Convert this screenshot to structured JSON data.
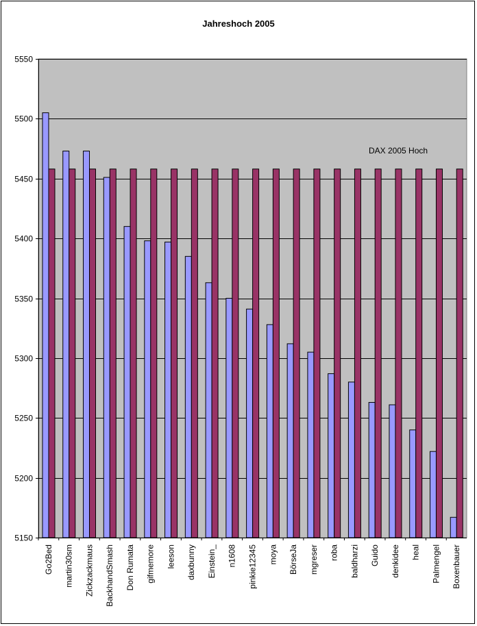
{
  "chart_data": {
    "type": "bar",
    "title": "Jahreshoch 2005",
    "xlabel": "",
    "ylabel": "",
    "ylim": [
      5150,
      5550
    ],
    "yticks": [
      5150,
      5200,
      5250,
      5300,
      5350,
      5400,
      5450,
      5500,
      5550
    ],
    "grid": true,
    "annotation": "DAX 2005 Hoch",
    "categories": [
      "Go2Bed",
      "martin30sm",
      "Zickzackmaus",
      "BackhandSmash",
      "Don Rumata",
      "gifmemore",
      "leeson",
      "daxbunny",
      "Einstein_",
      "n1608",
      "pinkie12345",
      "moya",
      "BörseJa",
      "mgreser",
      "roba",
      "baldharzi",
      "Guido",
      "denkidee",
      "heal",
      "Palmengel",
      "Boxenbauer"
    ],
    "series": [
      {
        "name": "",
        "color": "#9999ff",
        "values": [
          5505,
          5473,
          5473,
          5451,
          5410,
          5398,
          5397,
          5385,
          5363,
          5350,
          5341,
          5328,
          5312,
          5305,
          5287,
          5280,
          5263,
          5261,
          5240,
          5222,
          5167
        ]
      },
      {
        "name": "",
        "color": "#993366",
        "values": [
          5458,
          5458,
          5458,
          5458,
          5458,
          5458,
          5458,
          5458,
          5458,
          5458,
          5458,
          5458,
          5458,
          5458,
          5458,
          5458,
          5458,
          5458,
          5458,
          5458,
          5458
        ]
      }
    ],
    "plot_background": "#c0c0c0",
    "gridline_color": "#000000"
  }
}
